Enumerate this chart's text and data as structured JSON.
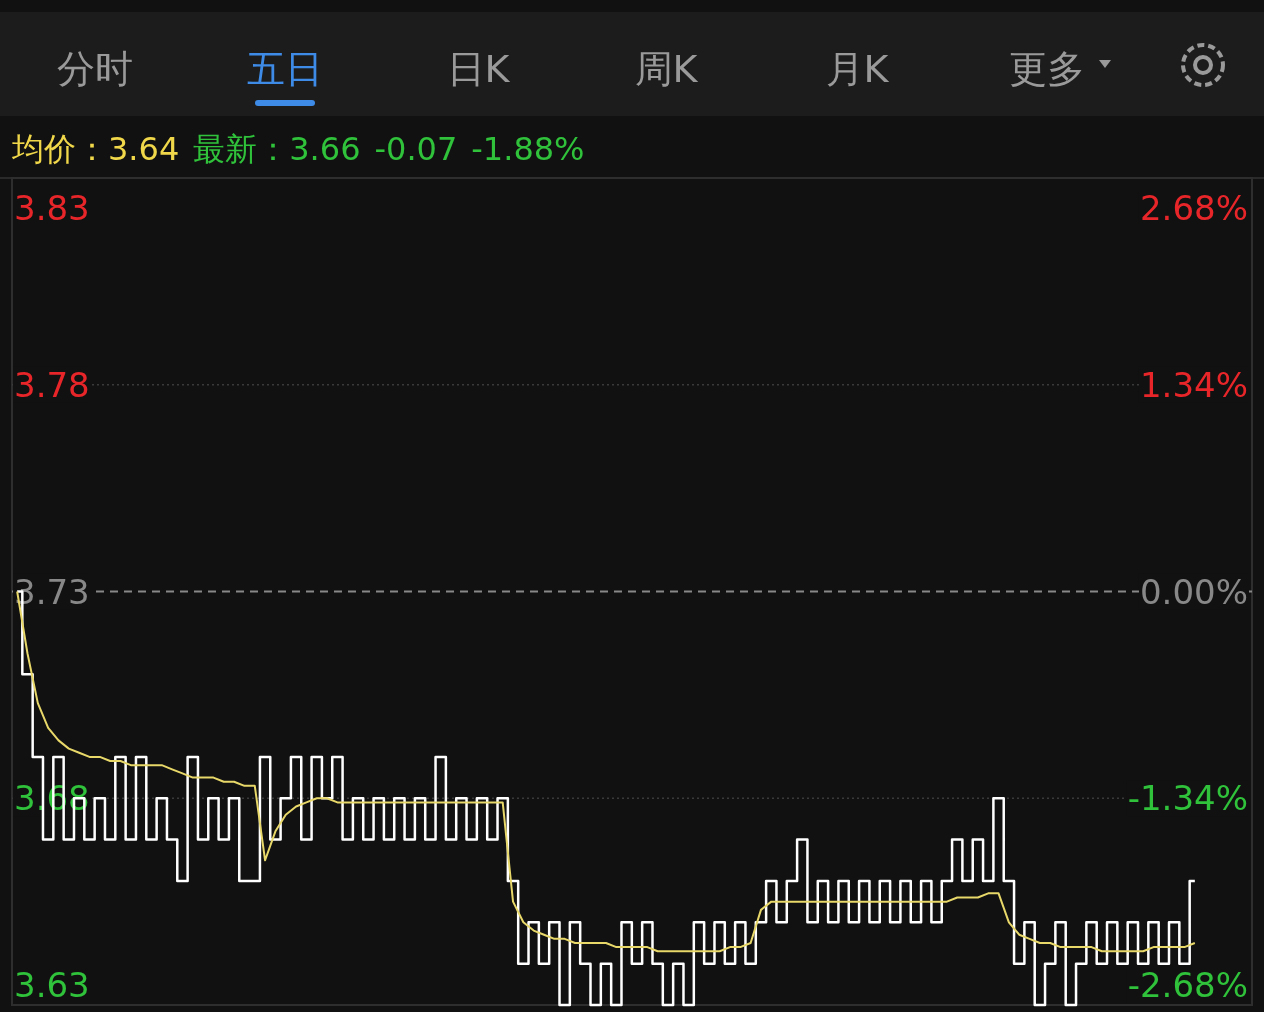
{
  "chart_data": {
    "type": "line",
    "annotations": [
      "分时",
      "五日",
      "日K",
      "周K",
      "月K",
      "更多",
      "均价：3.64",
      "最新：3.66",
      "-0.07",
      "-1.88%"
    ],
    "categories": [
      null,
      null,
      null,
      null,
      null,
      null,
      null,
      null,
      null,
      null,
      null,
      null,
      null,
      null,
      null,
      null,
      null,
      null,
      null,
      null,
      null,
      null,
      null,
      null,
      null,
      null,
      null,
      null,
      null,
      null,
      null,
      null,
      null,
      null,
      null,
      null,
      null,
      null,
      null,
      null,
      null,
      null,
      null,
      null,
      null,
      null,
      null,
      null,
      null,
      null,
      null,
      null,
      null,
      null,
      null,
      null,
      null,
      null,
      null,
      null,
      null,
      null,
      null,
      null,
      null,
      null,
      null,
      null,
      null,
      null,
      null,
      null,
      null,
      null,
      null,
      null,
      null,
      null,
      null,
      null,
      null,
      null,
      null,
      null,
      null,
      null,
      null,
      null,
      null,
      null,
      null,
      null,
      null,
      null,
      null,
      null,
      null,
      null,
      null,
      null,
      null,
      null,
      null,
      null,
      null,
      null,
      null,
      null,
      null,
      null,
      null,
      null,
      null,
      null,
      null
    ],
    "series": [
      {
        "type": "step",
        "color": "#ffffff",
        "values": [
          3.73,
          3.71,
          3.69,
          3.67,
          3.69,
          3.67,
          3.68,
          3.67,
          3.68,
          3.67,
          3.69,
          3.67,
          3.69,
          3.67,
          3.68,
          3.67,
          3.66,
          3.69,
          3.67,
          3.68,
          3.67,
          3.68,
          3.66,
          3.66,
          3.69,
          3.67,
          3.68,
          3.69,
          3.67,
          3.69,
          3.68,
          3.69,
          3.67,
          3.68,
          3.67,
          3.68,
          3.67,
          3.68,
          3.67,
          3.68,
          3.67,
          3.69,
          3.67,
          3.68,
          3.67,
          3.68,
          3.67,
          3.68,
          3.66,
          3.64,
          3.65,
          3.64,
          3.65,
          3.63,
          3.65,
          3.64,
          3.63,
          3.64,
          3.63,
          3.65,
          3.64,
          3.65,
          3.64,
          3.63,
          3.64,
          3.63,
          3.65,
          3.64,
          3.65,
          3.64,
          3.65,
          3.64,
          3.65,
          3.66,
          3.65,
          3.66,
          3.67,
          3.65,
          3.66,
          3.65,
          3.66,
          3.65,
          3.66,
          3.65,
          3.66,
          3.65,
          3.66,
          3.65,
          3.66,
          3.65,
          3.66,
          3.67,
          3.66,
          3.67,
          3.66,
          3.68,
          3.66,
          3.64,
          3.65,
          3.63,
          3.64,
          3.65,
          3.63,
          3.64,
          3.65,
          3.64,
          3.65,
          3.64,
          3.65,
          3.64,
          3.65,
          3.64,
          3.65,
          3.64,
          3.66
        ]
      },
      {
        "type": "line",
        "color": "#e8d86a",
        "values": [
          3.73,
          3.715,
          3.703,
          3.697,
          3.694,
          3.692,
          3.691,
          3.69,
          3.69,
          3.689,
          3.689,
          3.688,
          3.688,
          3.688,
          3.688,
          3.687,
          3.686,
          3.685,
          3.685,
          3.685,
          3.684,
          3.684,
          3.683,
          3.683,
          3.665,
          3.672,
          3.676,
          3.678,
          3.679,
          3.68,
          3.68,
          3.679,
          3.679,
          3.679,
          3.679,
          3.679,
          3.679,
          3.679,
          3.679,
          3.679,
          3.679,
          3.679,
          3.679,
          3.679,
          3.679,
          3.679,
          3.679,
          3.679,
          3.655,
          3.65,
          3.648,
          3.647,
          3.646,
          3.646,
          3.645,
          3.645,
          3.645,
          3.645,
          3.644,
          3.644,
          3.644,
          3.644,
          3.643,
          3.643,
          3.643,
          3.643,
          3.643,
          3.643,
          3.643,
          3.644,
          3.644,
          3.645,
          3.653,
          3.655,
          3.655,
          3.655,
          3.655,
          3.655,
          3.655,
          3.655,
          3.655,
          3.655,
          3.655,
          3.655,
          3.655,
          3.655,
          3.655,
          3.655,
          3.655,
          3.655,
          3.655,
          3.656,
          3.656,
          3.656,
          3.657,
          3.657,
          3.65,
          3.647,
          3.646,
          3.645,
          3.645,
          3.644,
          3.644,
          3.644,
          3.644,
          3.643,
          3.643,
          3.643,
          3.643,
          3.643,
          3.644,
          3.644,
          3.644,
          3.644,
          3.645
        ]
      }
    ],
    "ylim": [
      3.63,
      3.83
    ],
    "yticks": [
      3.63,
      3.68,
      3.73,
      3.78,
      3.83
    ],
    "y2lim": [
      -2.68,
      2.68
    ],
    "y2ticks": [
      {
        "value": -2.68,
        "label": "-2.68%"
      },
      {
        "value": -1.34,
        "label": "-1.34%"
      },
      {
        "value": 0,
        "label": "0.00%"
      },
      {
        "value": 1.34,
        "label": "1.34%"
      },
      {
        "value": 2.68,
        "label": "2.68%"
      }
    ],
    "ref_lines": [
      {
        "axis": "y",
        "value": 3.73,
        "color": "#888888",
        "line_style": "dashed"
      }
    ],
    "grid": "y"
  }
}
